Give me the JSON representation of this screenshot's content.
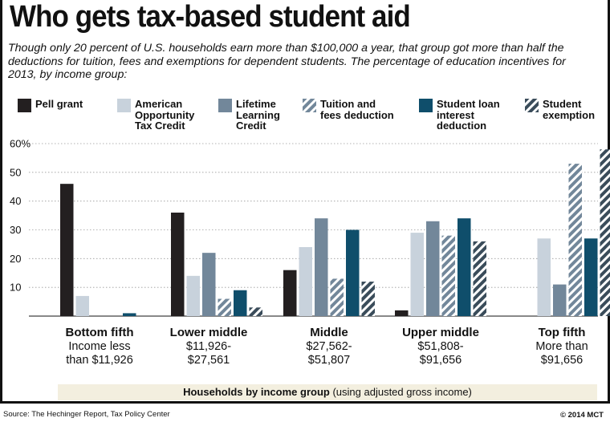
{
  "header": {
    "title": "Who gets tax-based student aid",
    "subtitle": "Though only 20 percent of U.S. households earn more than $100,000 a year, that group got more than half the deductions for tuition, fees and exemptions for dependent students. The percentage of education incentives for 2013, by income group:"
  },
  "footer": {
    "source": "Source: The Hechinger Report, Tax Policy Center",
    "credit": "© 2014 MCT"
  },
  "colors": {
    "pell": "#231f20",
    "aotc": "#c8d2dc",
    "llc": "#72879a",
    "tuition": "#72879a",
    "loan": "#0f4e6b",
    "exemption": "#3a4c5a"
  },
  "chart_data": {
    "type": "bar",
    "title": "Who gets tax-based student aid",
    "y_tick_labels": [
      "60%",
      "50",
      "40",
      "30",
      "20",
      "10"
    ],
    "ylim": [
      0,
      60
    ],
    "grid": true,
    "x_axis_label": "Households by income group",
    "x_axis_note": "(using adjusted gross income)",
    "categories": [
      {
        "name": "Bottom fifth",
        "range": "Income less\nthan $11,926"
      },
      {
        "name": "Lower middle",
        "range": "$11,926-\n$27,561"
      },
      {
        "name": "Middle",
        "range": "$27,562-\n$51,807"
      },
      {
        "name": "Upper middle",
        "range": "$51,808-\n$91,656"
      },
      {
        "name": "Top fifth",
        "range": "More than\n$91,656"
      }
    ],
    "series": [
      {
        "name": "Pell grant",
        "legend_label": "Pell grant",
        "color": "#231f20",
        "pattern": "solid",
        "values": [
          46,
          36,
          16,
          2,
          0
        ]
      },
      {
        "name": "American Opportunity Tax Credit",
        "legend_label": "American\nOpportunity\nTax Credit",
        "color": "#c8d2dc",
        "pattern": "solid",
        "values": [
          7,
          14,
          24,
          29,
          27
        ]
      },
      {
        "name": "Lifetime Learning Credit",
        "legend_label": "Lifetime\nLearning\nCredit",
        "color": "#72879a",
        "pattern": "solid",
        "values": [
          0,
          22,
          34,
          33,
          11
        ]
      },
      {
        "name": "Tuition and fees deduction",
        "legend_label": "Tuition and\nfees deduction",
        "color": "#72879a",
        "pattern": "hatched",
        "values": [
          0,
          6,
          13,
          28,
          53
        ]
      },
      {
        "name": "Student loan interest deduction",
        "legend_label": "Student loan\ninterest\ndeduction",
        "color": "#0f4e6b",
        "pattern": "solid",
        "values": [
          1,
          9,
          30,
          34,
          27
        ]
      },
      {
        "name": "Student exemption",
        "legend_label": "Student\nexemption",
        "color": "#3a4c5a",
        "pattern": "hatched",
        "values": [
          0,
          3,
          12,
          26,
          58
        ]
      }
    ],
    "legend_placement": "top"
  }
}
